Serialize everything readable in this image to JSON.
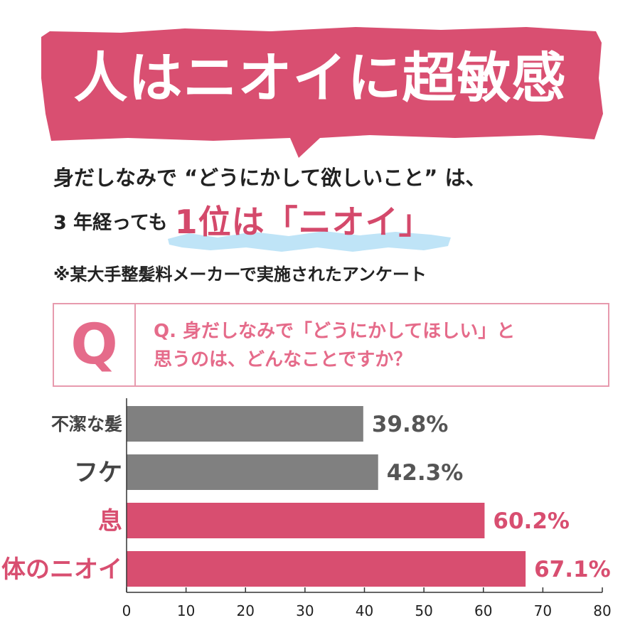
{
  "headline": "人はニオイに超敏感",
  "lead": {
    "line1": "身だしなみで “どうにかして欲しいこと” は、",
    "line2_prefix": "3 年経っても",
    "line2_highlight": "1位は「ニオイ」"
  },
  "note": "※某大手整髪料メーカーで実施されたアンケート",
  "question": {
    "mark": "Q",
    "line1": "Q. 身だしなみで「どうにかしてほしい」と",
    "line2": "思うのは、どんなことですか？"
  },
  "colors": {
    "accent": "#d84e70",
    "banner": "#d94f71",
    "gray_bar": "#808080",
    "q_border": "#e79aae",
    "q_text": "#e56b8a",
    "brush": "#bfe4f7"
  },
  "chart_data": {
    "type": "bar",
    "orientation": "horizontal",
    "categories": [
      "不潔な髪",
      "フケ",
      "息",
      "体のニオイ"
    ],
    "values": [
      39.8,
      42.3,
      60.2,
      67.1
    ],
    "value_labels": [
      "39.8%",
      "42.3%",
      "60.2%",
      "67.1%"
    ],
    "highlighted": [
      false,
      false,
      true,
      true
    ],
    "xlim": [
      0,
      80
    ],
    "xticks": [
      "0",
      "10",
      "20",
      "30",
      "40",
      "50",
      "60",
      "70",
      "80"
    ],
    "grid": false,
    "legend": "none"
  }
}
